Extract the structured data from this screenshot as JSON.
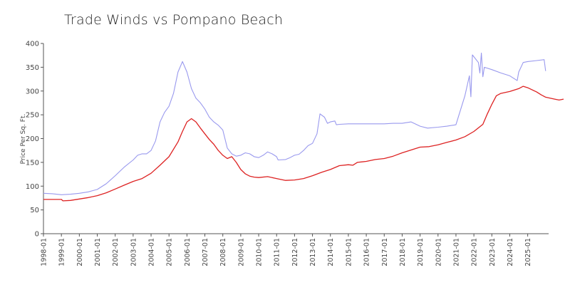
{
  "chart_data": {
    "type": "line",
    "title": "Trade Winds vs Pompano Beach",
    "xlabel": "",
    "ylabel": "Price Per Sq. Ft.",
    "ylim": [
      0,
      400
    ],
    "y_ticks": [
      "0",
      "50",
      "100",
      "150",
      "200",
      "250",
      "300",
      "350",
      "400"
    ],
    "x_ticks": [
      "1998-01",
      "1999-01",
      "2000-01",
      "2001-01",
      "2002-01",
      "2003-01",
      "2004-01",
      "2005-01",
      "2006-01",
      "2007-01",
      "2008-01",
      "2009-01",
      "2010-01",
      "2011-01",
      "2012-01",
      "2013-01",
      "2014-01",
      "2015-01",
      "2016-01",
      "2017-01",
      "2018-01",
      "2019-01",
      "2020-01",
      "2021-01",
      "2022-01",
      "2023-01",
      "2024-01",
      "2025-01"
    ],
    "grid": false,
    "legend": "none",
    "series": [
      {
        "color": "#9999ee",
        "points": [
          [
            "1998-01",
            85
          ],
          [
            "1998-07",
            84
          ],
          [
            "1999-01",
            82
          ],
          [
            "1999-07",
            83
          ],
          [
            "2000-01",
            85
          ],
          [
            "2000-07",
            88
          ],
          [
            "2001-01",
            93
          ],
          [
            "2001-07",
            105
          ],
          [
            "2002-01",
            122
          ],
          [
            "2002-07",
            140
          ],
          [
            "2003-01",
            155
          ],
          [
            "2003-04",
            165
          ],
          [
            "2003-07",
            168
          ],
          [
            "2003-10",
            168
          ],
          [
            "2004-01",
            175
          ],
          [
            "2004-04",
            195
          ],
          [
            "2004-07",
            235
          ],
          [
            "2004-10",
            255
          ],
          [
            "2005-01",
            268
          ],
          [
            "2005-04",
            295
          ],
          [
            "2005-07",
            340
          ],
          [
            "2005-10",
            362
          ],
          [
            "2006-01",
            340
          ],
          [
            "2006-04",
            305
          ],
          [
            "2006-07",
            285
          ],
          [
            "2006-10",
            275
          ],
          [
            "2007-01",
            262
          ],
          [
            "2007-04",
            245
          ],
          [
            "2007-07",
            235
          ],
          [
            "2007-10",
            228
          ],
          [
            "2008-01",
            218
          ],
          [
            "2008-04",
            180
          ],
          [
            "2008-07",
            168
          ],
          [
            "2008-10",
            163
          ],
          [
            "2009-01",
            165
          ],
          [
            "2009-04",
            170
          ],
          [
            "2009-07",
            168
          ],
          [
            "2009-10",
            162
          ],
          [
            "2010-01",
            160
          ],
          [
            "2010-04",
            165
          ],
          [
            "2010-07",
            172
          ],
          [
            "2010-10",
            168
          ],
          [
            "2011-01",
            162
          ],
          [
            "2011-02",
            155
          ],
          [
            "2011-07",
            156
          ],
          [
            "2011-10",
            160
          ],
          [
            "2012-01",
            165
          ],
          [
            "2012-04",
            167
          ],
          [
            "2012-07",
            175
          ],
          [
            "2012-10",
            185
          ],
          [
            "2013-01",
            190
          ],
          [
            "2013-04",
            210
          ],
          [
            "2013-06",
            252
          ],
          [
            "2013-09",
            245
          ],
          [
            "2013-11",
            232
          ],
          [
            "2014-01",
            235
          ],
          [
            "2014-04",
            237
          ],
          [
            "2014-05",
            229
          ],
          [
            "2014-07",
            230
          ],
          [
            "2015-01",
            231
          ],
          [
            "2016-01",
            231
          ],
          [
            "2017-01",
            231
          ],
          [
            "2017-07",
            232
          ],
          [
            "2018-01",
            232
          ],
          [
            "2018-07",
            235
          ],
          [
            "2019-01",
            226
          ],
          [
            "2019-06",
            222
          ],
          [
            "2020-01",
            224
          ],
          [
            "2020-07",
            226
          ],
          [
            "2021-01",
            229
          ],
          [
            "2021-07",
            290
          ],
          [
            "2021-10",
            332
          ],
          [
            "2021-11",
            288
          ],
          [
            "2021-12",
            376
          ],
          [
            "2022-04",
            360
          ],
          [
            "2022-05",
            338
          ],
          [
            "2022-06",
            380
          ],
          [
            "2022-07",
            330
          ],
          [
            "2022-08",
            350
          ],
          [
            "2023-01",
            345
          ],
          [
            "2023-07",
            338
          ],
          [
            "2024-01",
            332
          ],
          [
            "2024-06",
            322
          ],
          [
            "2024-07",
            340
          ],
          [
            "2024-10",
            360
          ],
          [
            "2025-01",
            362
          ],
          [
            "2025-07",
            364
          ],
          [
            "2025-12",
            366
          ],
          [
            "2026-01",
            342
          ]
        ]
      },
      {
        "color": "#dd2222",
        "points": [
          [
            "1998-01",
            72
          ],
          [
            "1998-07",
            72
          ],
          [
            "1999-01",
            72
          ],
          [
            "1999-02",
            69
          ],
          [
            "1999-07",
            70
          ],
          [
            "2000-01",
            73
          ],
          [
            "2000-07",
            76
          ],
          [
            "2001-01",
            80
          ],
          [
            "2001-07",
            86
          ],
          [
            "2002-01",
            94
          ],
          [
            "2002-07",
            102
          ],
          [
            "2003-01",
            110
          ],
          [
            "2003-07",
            116
          ],
          [
            "2004-01",
            127
          ],
          [
            "2004-07",
            144
          ],
          [
            "2005-01",
            162
          ],
          [
            "2005-07",
            193
          ],
          [
            "2005-10",
            215
          ],
          [
            "2006-01",
            235
          ],
          [
            "2006-04",
            242
          ],
          [
            "2006-07",
            235
          ],
          [
            "2006-10",
            222
          ],
          [
            "2007-01",
            210
          ],
          [
            "2007-04",
            198
          ],
          [
            "2007-07",
            188
          ],
          [
            "2007-10",
            175
          ],
          [
            "2008-01",
            165
          ],
          [
            "2008-04",
            158
          ],
          [
            "2008-07",
            162
          ],
          [
            "2008-10",
            150
          ],
          [
            "2009-01",
            135
          ],
          [
            "2009-04",
            126
          ],
          [
            "2009-07",
            121
          ],
          [
            "2009-10",
            119
          ],
          [
            "2010-01",
            118
          ],
          [
            "2010-07",
            120
          ],
          [
            "2011-01",
            116
          ],
          [
            "2011-07",
            112
          ],
          [
            "2012-01",
            113
          ],
          [
            "2012-07",
            116
          ],
          [
            "2013-01",
            122
          ],
          [
            "2013-07",
            129
          ],
          [
            "2014-01",
            135
          ],
          [
            "2014-07",
            143
          ],
          [
            "2015-01",
            145
          ],
          [
            "2015-04",
            144
          ],
          [
            "2015-07",
            150
          ],
          [
            "2016-01",
            152
          ],
          [
            "2016-07",
            156
          ],
          [
            "2017-01",
            158
          ],
          [
            "2017-07",
            163
          ],
          [
            "2018-01",
            170
          ],
          [
            "2018-07",
            176
          ],
          [
            "2019-01",
            182
          ],
          [
            "2019-07",
            183
          ],
          [
            "2020-01",
            187
          ],
          [
            "2020-07",
            192
          ],
          [
            "2021-01",
            197
          ],
          [
            "2021-07",
            204
          ],
          [
            "2022-01",
            215
          ],
          [
            "2022-07",
            230
          ],
          [
            "2022-10",
            252
          ],
          [
            "2023-01",
            272
          ],
          [
            "2023-04",
            290
          ],
          [
            "2023-07",
            295
          ],
          [
            "2024-01",
            299
          ],
          [
            "2024-07",
            305
          ],
          [
            "2024-10",
            310
          ],
          [
            "2025-01",
            307
          ],
          [
            "2025-07",
            298
          ],
          [
            "2025-10",
            292
          ],
          [
            "2026-01",
            287
          ],
          [
            "2026-07",
            283
          ],
          [
            "2026-10",
            281
          ],
          [
            "2027-01",
            283
          ]
        ]
      }
    ]
  }
}
